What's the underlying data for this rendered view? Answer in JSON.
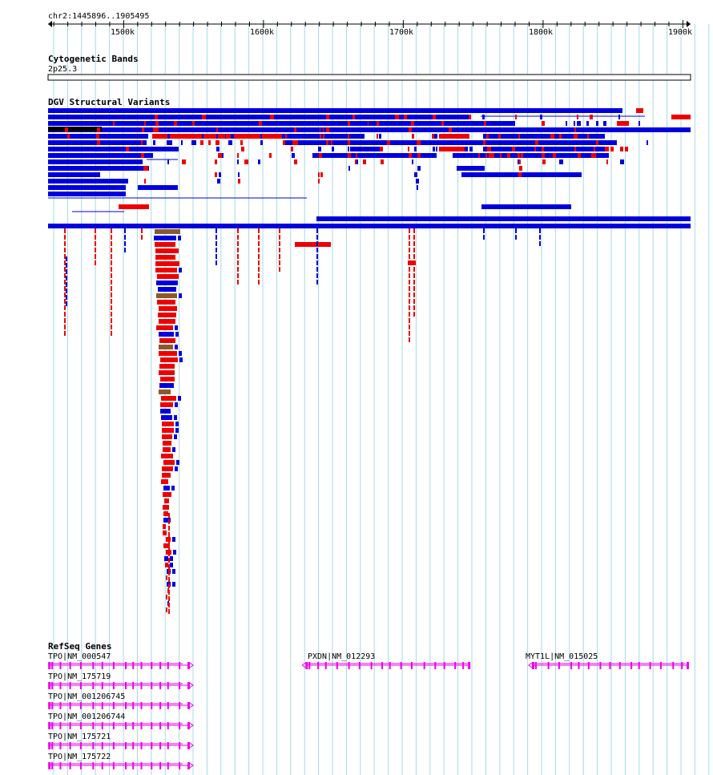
{
  "location": "chr2:1445896..1905495",
  "ruler": {
    "ticks": [
      "1500k",
      "1600k",
      "1700k",
      "1800k",
      "1900k"
    ],
    "tick_values": [
      1500000,
      1600000,
      1700000,
      1800000,
      1900000
    ],
    "range": [
      1445896,
      1905495
    ]
  },
  "tracks": {
    "cytoband": {
      "title": "Cytogenetic Bands",
      "band_label": "2p25.3"
    },
    "dgv": {
      "title": "DGV Structural Variants"
    },
    "refseq": {
      "title": "RefSeq Genes",
      "genes": [
        {
          "label": "TPO|NM_000547",
          "strand": "+",
          "start": 1446000,
          "end": 1542000
        },
        {
          "label": "TPO|NM_175719",
          "strand": "+",
          "start": 1446000,
          "end": 1542000
        },
        {
          "label": "TPO|NM_001206745",
          "strand": "+",
          "start": 1446000,
          "end": 1542000
        },
        {
          "label": "TPO|NM_001206744",
          "strand": "+",
          "start": 1446000,
          "end": 1542000
        },
        {
          "label": "TPO|NM_175721",
          "strand": "+",
          "start": 1446000,
          "end": 1542000
        },
        {
          "label": "TPO|NM_175722",
          "strand": "+",
          "start": 1446000,
          "end": 1542000
        },
        {
          "label": "PXDN|NM_012293",
          "strand": "-",
          "start": 1630000,
          "end": 1748000
        },
        {
          "label": "MYT1L|NM_015025",
          "strand": "-",
          "start": 1792000,
          "end": 1905495
        }
      ]
    }
  },
  "colors": {
    "grid": "#a8d8e8",
    "dgv_gain": "#0000dd",
    "dgv_loss": "#ee0000",
    "dgv_both": "#8b5a2b",
    "dgv_other": "#000000",
    "gene": "#ee00ee"
  }
}
